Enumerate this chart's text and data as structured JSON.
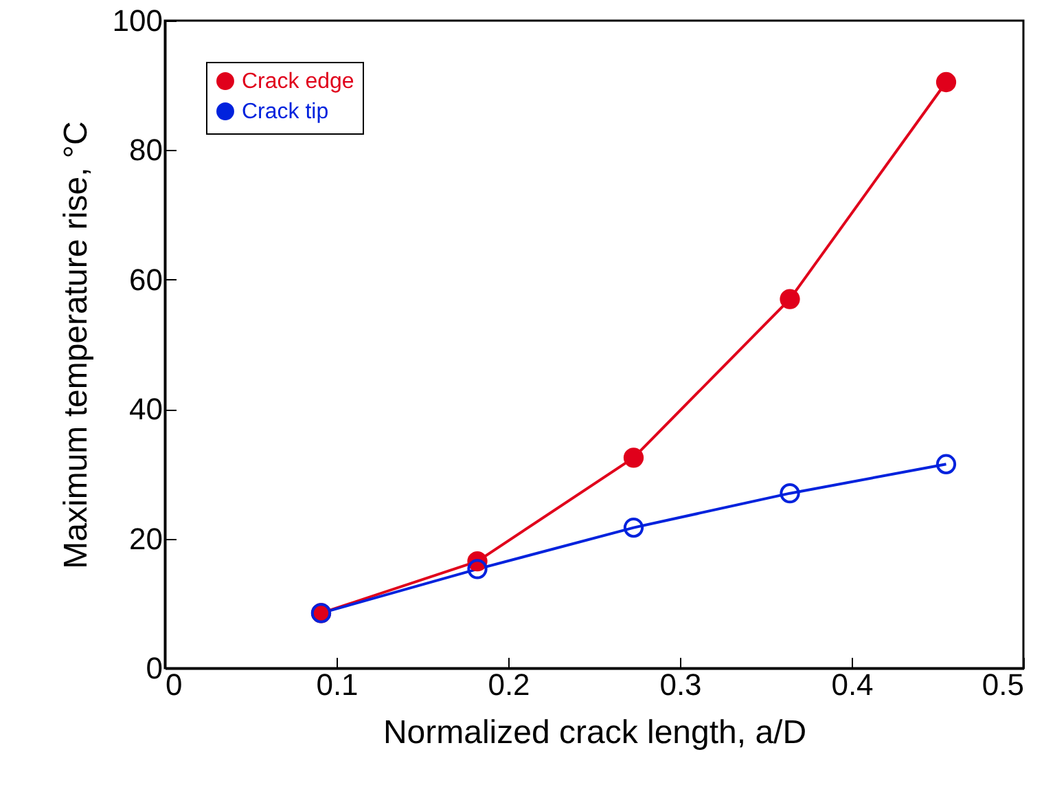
{
  "chart_data": {
    "type": "line",
    "xlabel": "Normalized crack length, a/D",
    "ylabel": "Maximum temperature rise, °C",
    "x": [
      0.091,
      0.182,
      0.273,
      0.364,
      0.455
    ],
    "series": [
      {
        "name": "Crack edge",
        "color": "#e0001b",
        "values": [
          8.5,
          16.5,
          32.5,
          57,
          90.5
        ]
      },
      {
        "name": "Crack tip",
        "color": "#0022dd",
        "values": [
          8.5,
          15.3,
          21.7,
          27,
          31.5
        ]
      }
    ],
    "xlim": [
      0,
      0.5
    ],
    "xticks": [
      0,
      0.1,
      0.2,
      0.3,
      0.4,
      0.5
    ],
    "ylim": [
      0,
      100
    ],
    "yticks": [
      0,
      20,
      40,
      60,
      80,
      100
    ],
    "marker": "circle",
    "legend": "top left",
    "grid": false
  }
}
